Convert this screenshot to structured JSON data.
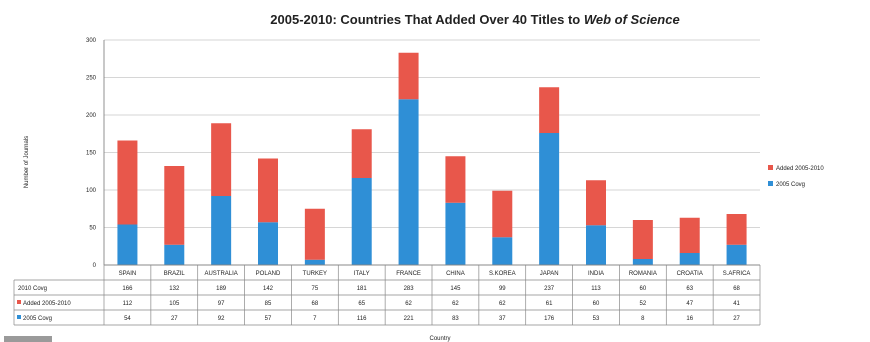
{
  "chart_data": {
    "type": "bar",
    "stacked": true,
    "title": {
      "prefix": "2005-2010: Countries That Added Over 40 Titles to ",
      "emphasis": "Web of Science"
    },
    "ylabel": "Number of Journals",
    "xlabel": "Country",
    "ylim": [
      0,
      300
    ],
    "yticks": [
      0,
      50,
      100,
      150,
      200,
      250,
      300
    ],
    "grid": true,
    "legend_position": "right",
    "categories": [
      "SPAIN",
      "BRAZIL",
      "AUSTRALIA",
      "POLAND",
      "TURKEY",
      "ITALY",
      "FRANCE",
      "CHINA",
      "S.KOREA",
      "JAPAN",
      "INDIA",
      "ROMANIA",
      "CROATIA",
      "S.AFRICA"
    ],
    "series": [
      {
        "name": "2005 Covg",
        "color": "#2f8fd6",
        "values": [
          54,
          27,
          92,
          57,
          7,
          116,
          221,
          83,
          37,
          176,
          53,
          8,
          16,
          27
        ]
      },
      {
        "name": "Added 2005-2010",
        "color": "#e8574b",
        "values": [
          112,
          105,
          97,
          85,
          68,
          65,
          62,
          62,
          62,
          61,
          60,
          52,
          47,
          41
        ]
      }
    ],
    "table": {
      "rows": [
        {
          "label": "2010 Covg",
          "marker": "none",
          "values": [
            166,
            132,
            189,
            142,
            75,
            181,
            283,
            145,
            99,
            237,
            113,
            60,
            63,
            68
          ]
        },
        {
          "label": "Added 2005-2010",
          "marker": "#e8574b",
          "values": [
            112,
            105,
            97,
            85,
            68,
            65,
            62,
            62,
            62,
            61,
            60,
            52,
            47,
            41
          ]
        },
        {
          "label": "2005 Covg",
          "marker": "#2f8fd6",
          "values": [
            54,
            27,
            92,
            57,
            7,
            116,
            221,
            83,
            37,
            176,
            53,
            8,
            16,
            27
          ]
        }
      ]
    }
  }
}
